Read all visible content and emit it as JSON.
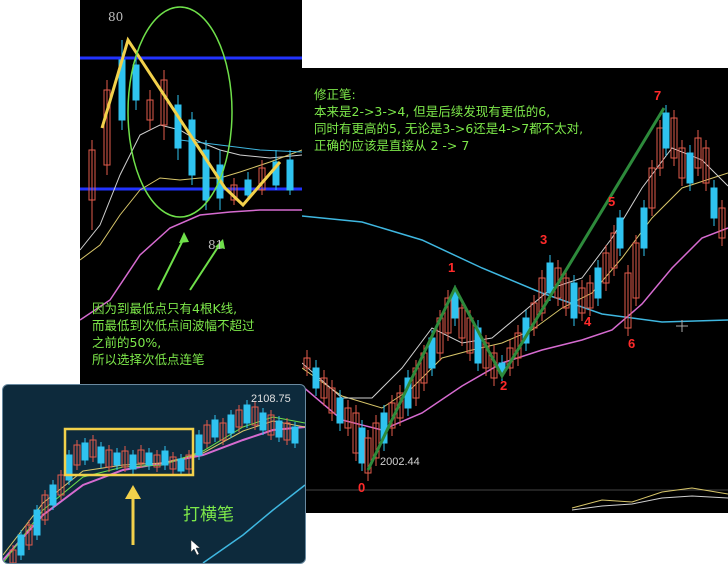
{
  "colors": {
    "up": "#e25b4b",
    "down": "#2fc3f0",
    "stroke": "#8de86e",
    "stroke_dark": "#2d8a3b",
    "yellow_box": "#f2d14b",
    "ma_pink": "#d66bd0",
    "ma_yellow": "#d8c66a",
    "ma_white": "#d0d0d0",
    "ma_cyan": "#3fb7e0",
    "blue_line": "#2233ff",
    "note_green": "#7de84a",
    "wave_red": "#ff2a2a"
  },
  "panel_a": {
    "label_top": "80",
    "label_bottom": "81",
    "note": "因为到最低点只有4根K线,\n而最低到次低点间波幅不超过\n之前的50%,\n所以选择次低点连笔"
  },
  "panel_b": {
    "note": "修正笔:\n本来是2->3->4, 但是后续发现有更低的6,\n同时有更高的5, 无论是3->6还是4->7都不太对,\n正确的应该是直接从 2 -> 7",
    "price_low": "2002.44",
    "wave_labels": [
      "0",
      "1",
      "2",
      "3",
      "4",
      "5",
      "6",
      "7"
    ]
  },
  "panel_c": {
    "price_high": "2108.75",
    "caption": "打横笔"
  },
  "chart_data": [
    {
      "type": "candlestick",
      "title": "",
      "labels": [
        "80",
        "81"
      ],
      "note": "因为到最低点只有4根K线,而最低到次低点间波幅不超过之前的50%,所以选择次低点连笔"
    },
    {
      "type": "candlestick",
      "title": "",
      "annotations": [
        "0",
        "1",
        "2",
        "3",
        "4",
        "5",
        "6",
        "7",
        "2002.44"
      ],
      "stroke_path": [
        "0",
        "1",
        "2",
        "7"
      ]
    },
    {
      "type": "candlestick",
      "title": "",
      "annotations": [
        "2108.75",
        "打横笔"
      ]
    }
  ]
}
